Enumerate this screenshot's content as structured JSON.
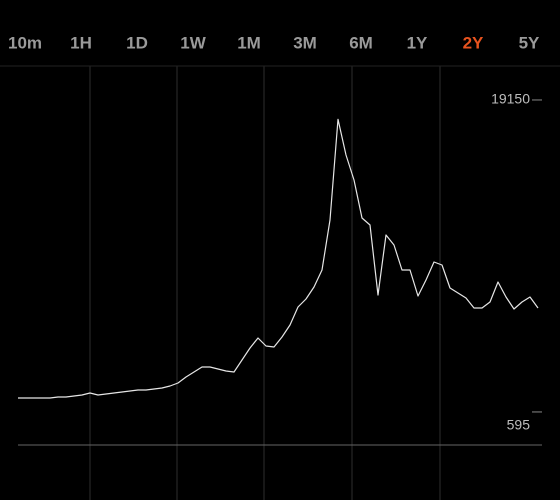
{
  "tabs": [
    "10m",
    "1H",
    "1D",
    "1W",
    "1M",
    "3M",
    "6M",
    "1Y",
    "2Y",
    "5Y"
  ],
  "selected_tab": 8,
  "tab_color": "#9a9a9a",
  "selected_tab_color": "#e8531f",
  "chart_data": {
    "type": "line",
    "color": "#e6e6e6",
    "ylim": [
      -1370,
      21230
    ],
    "yticks": [
      19150,
      595
    ],
    "values": [
      1428,
      1428,
      1428,
      1428,
      1428,
      1487,
      1487,
      1547,
      1606,
      1725,
      1606,
      1665,
      1725,
      1784,
      1844,
      1903,
      1903,
      1963,
      2022,
      2141,
      2320,
      2676,
      2974,
      3271,
      3271,
      3152,
      3033,
      2974,
      3687,
      4401,
      4996,
      4520,
      4461,
      5055,
      5769,
      6839,
      7315,
      8029,
      9040,
      12013,
      18000,
      15879,
      14392,
      12132,
      11716,
      7553,
      11121,
      10526,
      9040,
      9040,
      7494,
      8445,
      9516,
      9337,
      7969,
      7672,
      7375,
      6780,
      6780,
      7137,
      8326,
      7434,
      6720,
      7137,
      7434,
      6780
    ]
  }
}
